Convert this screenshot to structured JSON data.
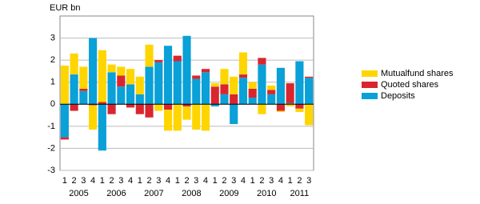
{
  "chart_data": {
    "type": "stacked_bar",
    "y_label": "EUR bn",
    "categories": [
      "1",
      "2",
      "3",
      "4",
      "1",
      "2",
      "3",
      "4",
      "1",
      "2",
      "3",
      "4",
      "1",
      "2",
      "3",
      "4",
      "1",
      "2",
      "3",
      "4",
      "1",
      "2",
      "3",
      "4",
      "1",
      "2",
      "3"
    ],
    "year_labels": [
      "2005",
      "2006",
      "2007",
      "2008",
      "2009",
      "2010",
      "2011"
    ],
    "series": [
      {
        "name": "Mutualfund shares",
        "color": "#ffd500",
        "values": [
          1.75,
          0.95,
          1.0,
          -1.1,
          2.35,
          0.35,
          0.4,
          0.7,
          0.8,
          1.0,
          -0.3,
          -0.95,
          -1.2,
          -0.6,
          -1.15,
          -1.2,
          0.15,
          0.7,
          0.8,
          1.0,
          0.3,
          -0.45,
          0.2,
          -0.05,
          -0.1,
          -0.15,
          -0.95
        ]
      },
      {
        "name": "Quoted shares",
        "color": "#d9262e",
        "values": [
          -0.1,
          -0.3,
          0.1,
          -0.05,
          0.1,
          -0.45,
          0.5,
          -0.15,
          -0.45,
          -0.6,
          0.1,
          -0.25,
          0.25,
          -0.1,
          0.15,
          0.15,
          0.8,
          0.45,
          0.45,
          0.15,
          0.4,
          0.3,
          0.2,
          -0.3,
          0.9,
          -0.2,
          0.05
        ]
      },
      {
        "name": "Deposits",
        "color": "#0aa0d8",
        "values": [
          -1.5,
          1.35,
          0.6,
          3.0,
          -2.1,
          1.45,
          0.8,
          0.9,
          0.45,
          1.7,
          1.9,
          2.65,
          1.95,
          3.1,
          1.15,
          1.45,
          -0.1,
          0.45,
          -0.9,
          1.2,
          0.3,
          1.8,
          0.45,
          1.65,
          0.05,
          1.95,
          1.2
        ]
      }
    ],
    "ylim": [
      -3,
      4
    ],
    "yticks": [
      -3,
      -2,
      -1,
      0,
      1,
      2,
      3
    ],
    "grid": true
  }
}
